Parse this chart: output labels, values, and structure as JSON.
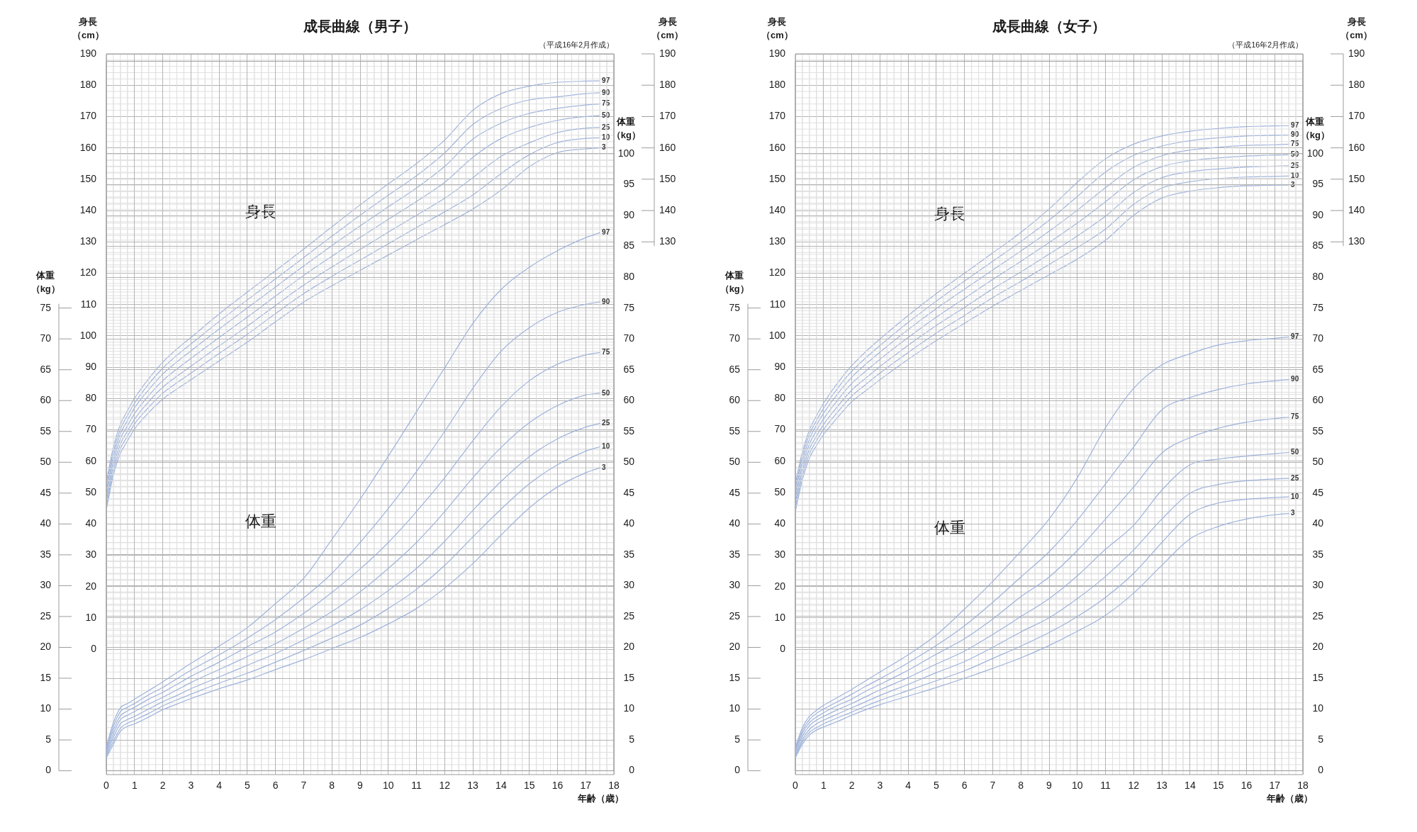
{
  "chart_data": [
    {
      "type": "line",
      "title": "成長曲線（男子）",
      "subtitle": "（平成16年2月作成）",
      "xlabel": "年齢（歳）",
      "ylabel": "身長（cm）",
      "y2label": "身長（cm）",
      "annotations": [
        "身長"
      ],
      "x": [
        0,
        0.25,
        0.5,
        0.75,
        1,
        1.5,
        2,
        2.5,
        3,
        4,
        5,
        6,
        7,
        8,
        9,
        10,
        11,
        12,
        13,
        14,
        15,
        16,
        17,
        17.5
      ],
      "xlim": [
        0,
        18
      ],
      "xticks": [
        0,
        1,
        2,
        3,
        4,
        5,
        6,
        7,
        8,
        9,
        10,
        11,
        12,
        13,
        14,
        15,
        16,
        17,
        18
      ],
      "ylim": [
        -40,
        190
      ],
      "yticks": [
        0,
        10,
        20,
        30,
        40,
        50,
        60,
        70,
        80,
        90,
        100,
        110,
        120,
        130,
        140,
        150,
        160,
        170,
        180,
        190
      ],
      "y2lim": [
        -40,
        190
      ],
      "y2ticks": [
        130,
        140,
        150,
        160,
        170,
        180,
        190
      ],
      "grid": true,
      "marker": "none",
      "line_style": "solid",
      "series": [
        {
          "name": "97",
          "color": "#9fb3db",
          "values": [
            53.5,
            64.5,
            71.8,
            76.1,
            80.1,
            86.3,
            91.6,
            95.8,
            99.5,
            107.0,
            114.0,
            120.8,
            127.7,
            134.8,
            141.8,
            148.5,
            155.0,
            162.5,
            172.0,
            177.3,
            179.7,
            180.9,
            181.3,
            181.4
          ]
        },
        {
          "name": "90",
          "color": "#9fb3db",
          "values": [
            52.1,
            63.1,
            70.3,
            74.6,
            78.5,
            84.6,
            89.7,
            93.8,
            97.4,
            104.6,
            111.5,
            118.2,
            125.0,
            131.8,
            138.5,
            144.9,
            151.1,
            158.4,
            167.5,
            172.6,
            175.3,
            176.3,
            177.3,
            177.6
          ]
        },
        {
          "name": "75",
          "color": "#9fb3db",
          "values": [
            50.6,
            61.6,
            68.8,
            73.0,
            77.0,
            82.8,
            87.8,
            91.7,
            95.2,
            102.2,
            108.9,
            115.6,
            122.3,
            128.8,
            135.1,
            141.2,
            147.2,
            154.1,
            162.8,
            167.9,
            171.0,
            172.6,
            173.7,
            174.0
          ]
        },
        {
          "name": "50",
          "color": "#9fb3db",
          "values": [
            49.0,
            60.0,
            67.2,
            71.3,
            75.2,
            80.9,
            85.7,
            89.4,
            92.8,
            99.5,
            106.0,
            112.7,
            119.3,
            125.4,
            131.4,
            137.2,
            142.9,
            149.0,
            157.0,
            163.0,
            166.5,
            168.8,
            170.0,
            170.3
          ]
        },
        {
          "name": "25",
          "color": "#9fb3db",
          "values": [
            47.4,
            58.4,
            65.5,
            69.6,
            73.4,
            79.0,
            83.6,
            87.1,
            90.3,
            96.8,
            103.1,
            109.7,
            116.2,
            122.0,
            127.6,
            133.1,
            138.5,
            143.9,
            150.5,
            157.3,
            161.6,
            164.9,
            166.3,
            166.5
          ]
        },
        {
          "name": "10",
          "color": "#9fb3db",
          "values": [
            45.9,
            56.9,
            64.0,
            68.0,
            71.9,
            77.2,
            81.7,
            85.0,
            88.1,
            94.4,
            100.5,
            107.1,
            113.5,
            119.0,
            124.2,
            129.4,
            134.6,
            139.6,
            145.0,
            151.8,
            157.8,
            161.7,
            163.0,
            163.2
          ]
        },
        {
          "name": "3",
          "color": "#9fb3db",
          "values": [
            44.5,
            55.5,
            62.5,
            66.5,
            70.3,
            75.5,
            79.8,
            83.0,
            86.0,
            92.0,
            98.0,
            104.5,
            110.8,
            116.0,
            120.9,
            125.8,
            130.7,
            135.5,
            140.5,
            146.5,
            154.0,
            158.5,
            159.7,
            160.0
          ]
        }
      ]
    },
    {
      "type": "line",
      "ylabel": "体重（kg）",
      "y2label": "体重（kg）",
      "annotations": [
        "体重"
      ],
      "x": [
        0,
        0.25,
        0.5,
        0.75,
        1,
        1.5,
        2,
        2.5,
        3,
        4,
        5,
        6,
        7,
        8,
        9,
        10,
        11,
        12,
        13,
        14,
        15,
        16,
        17,
        17.5
      ],
      "xlim": [
        0,
        18
      ],
      "xticks": [
        0,
        1,
        2,
        3,
        4,
        5,
        6,
        7,
        8,
        9,
        10,
        11,
        12,
        13,
        14,
        15,
        16,
        17,
        18
      ],
      "tick_labels": "y",
      "ylim": [
        0,
        115
      ],
      "yticks": [
        0,
        5,
        10,
        15,
        20,
        25,
        30,
        35,
        40,
        45,
        50,
        55,
        60,
        65,
        70,
        75,
        80,
        85,
        90,
        95,
        100
      ],
      "y2lim": [
        0,
        115
      ],
      "y2ticks": [
        0,
        5,
        10,
        15,
        20,
        25,
        30,
        35,
        40,
        45,
        50,
        55,
        60,
        65,
        70,
        75
      ],
      "grid": true,
      "marker": "none",
      "line_style": "solid",
      "series": [
        {
          "name": "97",
          "color": "#9fb3db",
          "values": [
            3.9,
            7.8,
            10.2,
            10.9,
            11.6,
            13.0,
            14.4,
            15.9,
            17.4,
            20.2,
            23.2,
            27.1,
            31.2,
            37.5,
            44.0,
            51.0,
            58.2,
            65.3,
            72.5,
            78.0,
            81.6,
            84.3,
            86.4,
            87.2
          ]
        },
        {
          "name": "90",
          "color": "#9fb3db",
          "values": [
            3.6,
            7.2,
            9.6,
            10.3,
            10.9,
            12.3,
            13.5,
            14.9,
            16.3,
            18.8,
            21.5,
            24.5,
            28.0,
            32.0,
            37.0,
            42.5,
            48.5,
            55.0,
            62.0,
            68.0,
            71.8,
            74.3,
            75.6,
            76.0
          ]
        },
        {
          "name": "75",
          "color": "#9fb3db",
          "values": [
            3.3,
            6.6,
            8.9,
            9.7,
            10.3,
            11.6,
            12.7,
            14.0,
            15.3,
            17.6,
            20.1,
            22.5,
            25.5,
            28.9,
            32.7,
            37.0,
            42.0,
            47.5,
            53.5,
            59.0,
            63.2,
            65.9,
            67.4,
            67.8
          ]
        },
        {
          "name": "50",
          "color": "#9fb3db",
          "values": [
            3.0,
            6.0,
            8.3,
            9.0,
            9.6,
            10.8,
            11.9,
            13.1,
            14.3,
            16.4,
            18.5,
            20.6,
            23.1,
            25.8,
            29.0,
            32.8,
            37.0,
            42.0,
            47.5,
            52.4,
            56.4,
            59.2,
            60.9,
            61.2
          ]
        },
        {
          "name": "25",
          "color": "#9fb3db",
          "values": [
            2.7,
            5.4,
            7.6,
            8.3,
            8.8,
            10.0,
            11.2,
            12.2,
            13.3,
            15.2,
            17.1,
            19.0,
            21.2,
            23.5,
            26.1,
            29.2,
            32.8,
            37.2,
            42.2,
            46.9,
            50.9,
            53.8,
            55.7,
            56.3
          ]
        },
        {
          "name": "10",
          "color": "#9fb3db",
          "values": [
            2.4,
            4.8,
            6.9,
            7.7,
            8.2,
            9.3,
            10.5,
            11.5,
            12.4,
            14.2,
            15.8,
            17.6,
            19.5,
            21.5,
            23.6,
            26.3,
            29.4,
            33.3,
            37.9,
            42.4,
            46.5,
            49.6,
            51.8,
            52.5
          ]
        },
        {
          "name": "3",
          "color": "#9fb3db",
          "values": [
            2.1,
            4.3,
            6.4,
            7.2,
            7.6,
            8.7,
            9.9,
            10.8,
            11.7,
            13.3,
            14.7,
            16.4,
            18.0,
            19.8,
            21.6,
            23.8,
            26.3,
            29.6,
            33.6,
            38.2,
            42.6,
            46.0,
            48.3,
            49.1
          ]
        }
      ]
    },
    {
      "type": "line",
      "title": "成長曲線（女子）",
      "subtitle": "（平成16年2月作成）",
      "xlabel": "年齢（歳）",
      "ylabel": "身長（cm）",
      "y2label": "身長（cm）",
      "annotations": [
        "身長"
      ],
      "x": [
        0,
        0.25,
        0.5,
        0.75,
        1,
        1.5,
        2,
        2.5,
        3,
        4,
        5,
        6,
        7,
        8,
        9,
        10,
        11,
        12,
        13,
        14,
        15,
        16,
        17,
        17.5
      ],
      "xlim": [
        0,
        18
      ],
      "xticks": [
        0,
        1,
        2,
        3,
        4,
        5,
        6,
        7,
        8,
        9,
        10,
        11,
        12,
        13,
        14,
        15,
        16,
        17,
        18
      ],
      "ylim": [
        -40,
        190
      ],
      "yticks": [
        0,
        10,
        20,
        30,
        40,
        50,
        60,
        70,
        80,
        90,
        100,
        110,
        120,
        130,
        140,
        150,
        160,
        170,
        180,
        190
      ],
      "y2lim": [
        -40,
        190
      ],
      "y2ticks": [
        130,
        140,
        150,
        160,
        170,
        180,
        190
      ],
      "grid": true,
      "marker": "none",
      "line_style": "solid",
      "series": [
        {
          "name": "97",
          "color": "#9fb3db",
          "values": [
            53.0,
            63.0,
            70.0,
            74.5,
            78.5,
            85.0,
            90.5,
            95.0,
            99.0,
            106.5,
            113.5,
            120.0,
            126.5,
            133.0,
            140.5,
            149.0,
            156.5,
            161.2,
            163.8,
            165.3,
            166.2,
            166.8,
            167.0,
            167.1
          ]
        },
        {
          "name": "90",
          "color": "#9fb3db",
          "values": [
            51.6,
            61.6,
            68.6,
            73.0,
            76.9,
            83.3,
            88.7,
            93.0,
            96.9,
            104.3,
            111.1,
            117.5,
            123.8,
            130.1,
            136.9,
            144.5,
            152.3,
            157.6,
            160.6,
            162.3,
            163.2,
            163.8,
            164.0,
            164.1
          ]
        },
        {
          "name": "75",
          "color": "#9fb3db",
          "values": [
            50.1,
            60.1,
            67.1,
            71.5,
            75.3,
            81.5,
            86.8,
            91.0,
            94.8,
            102.0,
            108.7,
            114.9,
            121.0,
            127.1,
            133.4,
            140.1,
            147.3,
            153.8,
            157.5,
            159.3,
            160.2,
            160.8,
            161.0,
            161.2
          ]
        },
        {
          "name": "50",
          "color": "#9fb3db",
          "values": [
            48.5,
            58.5,
            65.5,
            69.8,
            73.5,
            79.5,
            84.8,
            88.8,
            92.5,
            99.5,
            106.0,
            112.0,
            118.0,
            123.8,
            129.8,
            136.0,
            142.8,
            149.8,
            154.0,
            155.9,
            156.8,
            157.4,
            157.7,
            157.8
          ]
        },
        {
          "name": "25",
          "color": "#9fb3db",
          "values": [
            46.9,
            56.9,
            63.9,
            68.0,
            71.7,
            77.5,
            82.7,
            86.5,
            90.2,
            97.0,
            103.3,
            109.1,
            115.0,
            120.4,
            126.1,
            131.9,
            138.2,
            145.8,
            150.5,
            152.4,
            153.3,
            153.9,
            154.2,
            154.3
          ]
        },
        {
          "name": "10",
          "color": "#9fb3db",
          "values": [
            45.4,
            55.4,
            62.4,
            66.5,
            70.1,
            75.7,
            80.8,
            84.5,
            88.1,
            94.7,
            100.9,
            106.5,
            112.2,
            117.4,
            122.8,
            128.2,
            134.1,
            142.0,
            147.2,
            149.2,
            150.2,
            150.7,
            150.9,
            151.0
          ]
        },
        {
          "name": "3",
          "color": "#9fb3db",
          "values": [
            44.0,
            54.0,
            61.0,
            65.0,
            68.5,
            74.0,
            79.0,
            82.5,
            86.0,
            92.5,
            98.5,
            104.0,
            109.5,
            114.5,
            119.5,
            124.5,
            130.5,
            138.5,
            144.0,
            146.2,
            147.3,
            147.9,
            148.1,
            148.2
          ]
        }
      ]
    },
    {
      "type": "line",
      "ylabel": "体重（kg）",
      "y2label": "体重（kg）",
      "annotations": [
        "体重"
      ],
      "x": [
        0,
        0.25,
        0.5,
        0.75,
        1,
        1.5,
        2,
        2.5,
        3,
        4,
        5,
        6,
        7,
        8,
        9,
        10,
        11,
        12,
        13,
        14,
        15,
        16,
        17,
        17.5
      ],
      "xlim": [
        0,
        18
      ],
      "xticks": [
        0,
        1,
        2,
        3,
        4,
        5,
        6,
        7,
        8,
        9,
        10,
        11,
        12,
        13,
        14,
        15,
        16,
        17,
        18
      ],
      "tick_labels": "y",
      "ylim": [
        0,
        115
      ],
      "yticks": [
        0,
        5,
        10,
        15,
        20,
        25,
        30,
        35,
        40,
        45,
        50,
        55,
        60,
        65,
        70,
        75,
        80,
        85,
        90,
        95,
        100
      ],
      "y2lim": [
        0,
        115
      ],
      "y2ticks": [
        0,
        5,
        10,
        15,
        20,
        25,
        30,
        35,
        40,
        45,
        50,
        55,
        60,
        65,
        70,
        75
      ],
      "grid": true,
      "marker": "none",
      "line_style": "solid",
      "series": [
        {
          "name": "97",
          "color": "#9fb3db",
          "values": [
            3.8,
            7.0,
            8.8,
            9.8,
            10.6,
            11.9,
            13.2,
            14.6,
            16.0,
            18.8,
            22.0,
            26.2,
            30.7,
            35.6,
            40.8,
            47.5,
            55.6,
            62.0,
            65.8,
            67.6,
            69.0,
            69.7,
            70.1,
            70.3
          ]
        },
        {
          "name": "90",
          "color": "#9fb3db",
          "values": [
            3.5,
            6.5,
            8.3,
            9.3,
            10.0,
            11.2,
            12.4,
            13.7,
            14.9,
            17.5,
            20.3,
            23.5,
            27.3,
            31.4,
            35.5,
            40.6,
            46.5,
            52.5,
            58.5,
            60.5,
            61.8,
            62.7,
            63.2,
            63.4
          ]
        },
        {
          "name": "75",
          "color": "#9fb3db",
          "values": [
            3.3,
            6.1,
            7.8,
            8.7,
            9.4,
            10.6,
            11.6,
            12.9,
            14.0,
            16.3,
            18.9,
            21.4,
            24.6,
            28.2,
            31.4,
            35.7,
            40.8,
            46.0,
            51.5,
            54.0,
            55.5,
            56.5,
            57.1,
            57.3
          ]
        },
        {
          "name": "50",
          "color": "#9fb3db",
          "values": [
            3.0,
            5.6,
            7.3,
            8.2,
            8.8,
            9.9,
            10.9,
            12.0,
            13.1,
            15.1,
            17.3,
            19.4,
            22.1,
            25.0,
            27.9,
            31.6,
            35.9,
            39.8,
            45.5,
            49.6,
            50.5,
            51.0,
            51.4,
            51.6
          ]
        },
        {
          "name": "25",
          "color": "#9fb3db",
          "values": [
            2.6,
            5.1,
            6.7,
            7.6,
            8.2,
            9.2,
            10.2,
            11.2,
            12.2,
            14.0,
            15.9,
            17.7,
            20.0,
            22.5,
            24.8,
            27.9,
            31.5,
            35.8,
            40.8,
            45.0,
            46.4,
            47.0,
            47.3,
            47.4
          ]
        },
        {
          "name": "10",
          "color": "#9fb3db",
          "values": [
            2.4,
            4.7,
            6.2,
            7.0,
            7.6,
            8.6,
            9.5,
            10.5,
            11.4,
            13.0,
            14.6,
            16.2,
            18.2,
            20.2,
            22.4,
            25.0,
            28.1,
            32.0,
            37.0,
            41.6,
            43.4,
            44.0,
            44.3,
            44.4
          ]
        },
        {
          "name": "3",
          "color": "#9fb3db",
          "values": [
            2.1,
            4.3,
            5.8,
            6.6,
            7.1,
            8.0,
            9.0,
            9.9,
            10.7,
            12.1,
            13.5,
            15.0,
            16.6,
            18.3,
            20.3,
            22.6,
            25.2,
            28.8,
            33.3,
            37.6,
            39.6,
            40.8,
            41.5,
            41.7
          ]
        }
      ]
    }
  ]
}
